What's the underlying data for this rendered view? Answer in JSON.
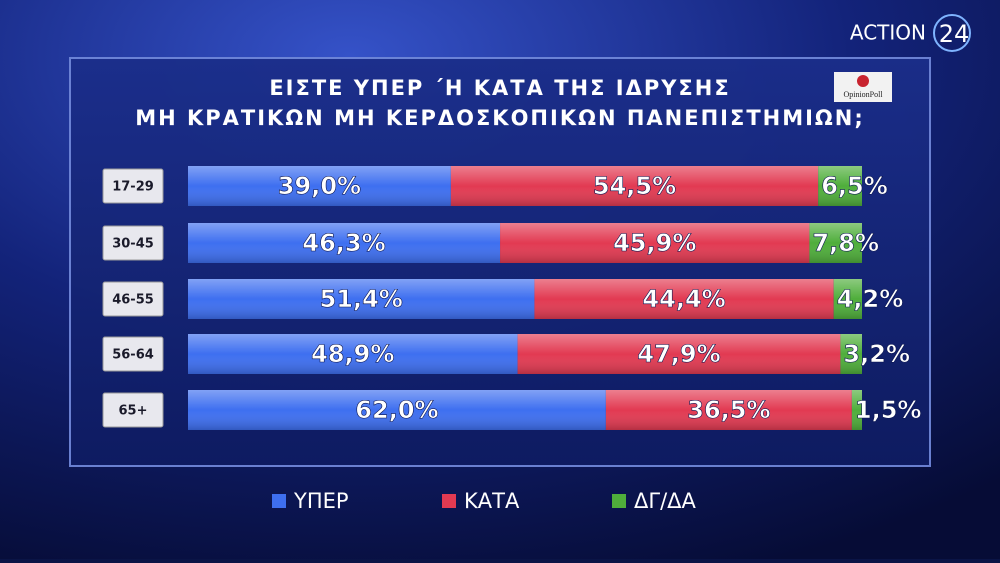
{
  "chart_data": {
    "type": "bar",
    "orientation": "horizontal",
    "stacked": true,
    "title": "ΕΙΣΤΕ ΥΠΕΡ ΄Η ΚΑΤΑ ΤΗΣ ΙΔΡΥΣΗΣ",
    "subtitle": "ΜΗ ΚΡΑΤΙΚΩΝ ΜΗ ΚΕΡΔΟΣΚΟΠΙΚΩΝ ΠΑΝΕΠΙΣΤΗΜΙΩΝ;",
    "categories": [
      "17-29",
      "30-45",
      "46-55",
      "56-64",
      "65+"
    ],
    "series": [
      {
        "name": "ΥΠΕΡ",
        "color": "#3e6ff0",
        "values": [
          39.0,
          46.3,
          51.4,
          48.9,
          62.0
        ],
        "value_labels": [
          "39,0%",
          "46,3%",
          "51,4%",
          "48,9%",
          "62,0%"
        ]
      },
      {
        "name": "ΚΑΤΑ",
        "color": "#e23a52",
        "values": [
          54.5,
          45.9,
          44.4,
          47.9,
          36.5
        ],
        "value_labels": [
          "54,5%",
          "45,9%",
          "44,4%",
          "47,9%",
          "36,5%"
        ]
      },
      {
        "name": "ΔΓ/ΔΑ",
        "color": "#4fae3b",
        "values": [
          6.5,
          7.8,
          4.2,
          3.2,
          1.5
        ],
        "value_labels": [
          "6,5%",
          "7,8%",
          "4,2%",
          "3,2%",
          "1,5%"
        ]
      }
    ],
    "legend": "bottom"
  },
  "branding": {
    "channel": "ACTION",
    "channel_number": "24",
    "pollster": "OpinionPoll"
  }
}
